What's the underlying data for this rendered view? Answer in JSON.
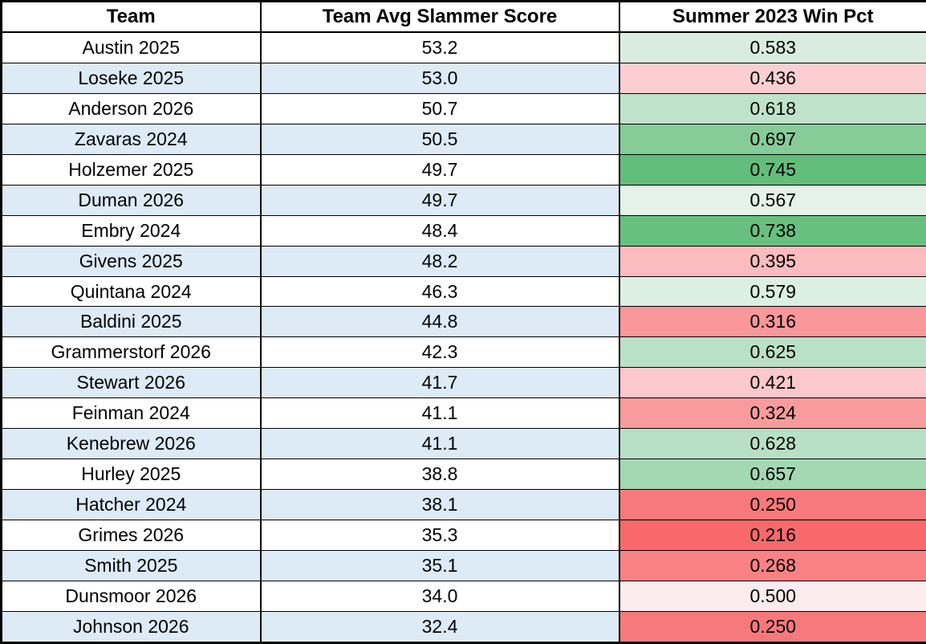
{
  "table": {
    "columns": [
      {
        "label": "Team"
      },
      {
        "label": "Team Avg Slammer Score"
      },
      {
        "label": "Summer 2023 Win Pct"
      }
    ],
    "rows": [
      {
        "team": "Austin 2025",
        "score": "53.2",
        "win_pct": "0.583",
        "win_pct_color": "#D8EDE0"
      },
      {
        "team": "Loseke 2025",
        "score": "53.0",
        "win_pct": "0.436",
        "win_pct_color": "#FBCFD2"
      },
      {
        "team": "Anderson 2026",
        "score": "50.7",
        "win_pct": "0.618",
        "win_pct_color": "#BFE3CA"
      },
      {
        "team": "Zavaras 2024",
        "score": "50.5",
        "win_pct": "0.697",
        "win_pct_color": "#86CC99"
      },
      {
        "team": "Holzemer 2025",
        "score": "49.7",
        "win_pct": "0.745",
        "win_pct_color": "#63BE7B"
      },
      {
        "team": "Duman 2026",
        "score": "49.7",
        "win_pct": "0.567",
        "win_pct_color": "#E4F2EA"
      },
      {
        "team": "Embry 2024",
        "score": "48.4",
        "win_pct": "0.738",
        "win_pct_color": "#68C07F"
      },
      {
        "team": "Givens 2025",
        "score": "48.2",
        "win_pct": "0.395",
        "win_pct_color": "#FABCBE"
      },
      {
        "team": "Quintana 2024",
        "score": "46.3",
        "win_pct": "0.579",
        "win_pct_color": "#DBEFE3"
      },
      {
        "team": "Baldini 2025",
        "score": "44.8",
        "win_pct": "0.316",
        "win_pct_color": "#F9979A"
      },
      {
        "team": "Grammerstorf 2026",
        "score": "42.3",
        "win_pct": "0.625",
        "win_pct_color": "#BAE1C6"
      },
      {
        "team": "Stewart 2026",
        "score": "41.7",
        "win_pct": "0.421",
        "win_pct_color": "#FBC8CB"
      },
      {
        "team": "Feinman 2024",
        "score": "41.1",
        "win_pct": "0.324",
        "win_pct_color": "#F99B9D"
      },
      {
        "team": "Kenebrew 2026",
        "score": "41.1",
        "win_pct": "0.628",
        "win_pct_color": "#B8E0C4"
      },
      {
        "team": "Hurley 2025",
        "score": "38.8",
        "win_pct": "0.657",
        "win_pct_color": "#A3D8B2"
      },
      {
        "team": "Hatcher 2024",
        "score": "38.1",
        "win_pct": "0.250",
        "win_pct_color": "#F8797B"
      },
      {
        "team": "Grimes 2026",
        "score": "35.3",
        "win_pct": "0.216",
        "win_pct_color": "#F8696B"
      },
      {
        "team": "Smith 2025",
        "score": "35.1",
        "win_pct": "0.268",
        "win_pct_color": "#F98183"
      },
      {
        "team": "Dunsmoor 2026",
        "score": "34.0",
        "win_pct": "0.500",
        "win_pct_color": "#FCECEF"
      },
      {
        "team": "Johnson 2026",
        "score": "32.4",
        "win_pct": "0.250",
        "win_pct_color": "#F8797B"
      }
    ]
  },
  "colors": {
    "row_alt": "#DDEBF7",
    "row_default": "#FFFFFF",
    "border": "#000000",
    "scale_min_color": "#F8696B",
    "scale_mid_color": "#FCFCFF",
    "scale_max_color": "#63BE7B"
  },
  "chart_data": {
    "type": "table",
    "title": "",
    "columns": [
      "Team",
      "Team Avg Slammer Score",
      "Summer 2023 Win Pct"
    ],
    "rows": [
      [
        "Austin 2025",
        53.2,
        0.583
      ],
      [
        "Loseke 2025",
        53.0,
        0.436
      ],
      [
        "Anderson 2026",
        50.7,
        0.618
      ],
      [
        "Zavaras 2024",
        50.5,
        0.697
      ],
      [
        "Holzemer 2025",
        49.7,
        0.745
      ],
      [
        "Duman 2026",
        49.7,
        0.567
      ],
      [
        "Embry 2024",
        48.4,
        0.738
      ],
      [
        "Givens 2025",
        48.2,
        0.395
      ],
      [
        "Quintana 2024",
        46.3,
        0.579
      ],
      [
        "Baldini 2025",
        44.8,
        0.316
      ],
      [
        "Grammerstorf 2026",
        42.3,
        0.625
      ],
      [
        "Stewart 2026",
        41.7,
        0.421
      ],
      [
        "Feinman 2024",
        41.1,
        0.324
      ],
      [
        "Kenebrew 2026",
        41.1,
        0.628
      ],
      [
        "Hurley 2025",
        38.8,
        0.657
      ],
      [
        "Hatcher 2024",
        38.1,
        0.25
      ],
      [
        "Grimes 2026",
        35.3,
        0.216
      ],
      [
        "Smith 2025",
        35.1,
        0.268
      ],
      [
        "Dunsmoor 2026",
        34.0,
        0.5
      ],
      [
        "Johnson 2026",
        32.4,
        0.25
      ]
    ],
    "notes": "Win Pct column uses a red-white-green conditional-format color scale; Team and Score columns alternate white / light-blue banding"
  }
}
